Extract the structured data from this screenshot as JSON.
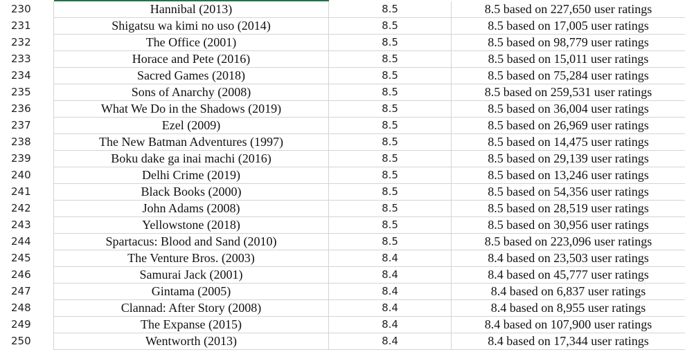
{
  "rows": [
    {
      "n": "230",
      "title": "Hannibal (2013)",
      "rating": "8.5",
      "desc": "8.5 based on 227,650 user ratings"
    },
    {
      "n": "231",
      "title": "Shigatsu wa kimi no uso (2014)",
      "rating": "8.5",
      "desc": "8.5 based on 17,005 user ratings"
    },
    {
      "n": "232",
      "title": "The Office (2001)",
      "rating": "8.5",
      "desc": "8.5 based on 98,779 user ratings"
    },
    {
      "n": "233",
      "title": "Horace and Pete (2016)",
      "rating": "8.5",
      "desc": "8.5 based on 15,011 user ratings"
    },
    {
      "n": "234",
      "title": "Sacred Games (2018)",
      "rating": "8.5",
      "desc": "8.5 based on 75,284 user ratings"
    },
    {
      "n": "235",
      "title": "Sons of Anarchy (2008)",
      "rating": "8.5",
      "desc": "8.5 based on 259,531 user ratings"
    },
    {
      "n": "236",
      "title": "What We Do in the Shadows (2019)",
      "rating": "8.5",
      "desc": "8.5 based on 36,004 user ratings"
    },
    {
      "n": "237",
      "title": "Ezel (2009)",
      "rating": "8.5",
      "desc": "8.5 based on 26,969 user ratings"
    },
    {
      "n": "238",
      "title": "The New Batman Adventures (1997)",
      "rating": "8.5",
      "desc": "8.5 based on 14,475 user ratings"
    },
    {
      "n": "239",
      "title": "Boku dake ga inai machi (2016)",
      "rating": "8.5",
      "desc": "8.5 based on 29,139 user ratings"
    },
    {
      "n": "240",
      "title": "Delhi Crime (2019)",
      "rating": "8.5",
      "desc": "8.5 based on 13,246 user ratings"
    },
    {
      "n": "241",
      "title": "Black Books (2000)",
      "rating": "8.5",
      "desc": "8.5 based on 54,356 user ratings"
    },
    {
      "n": "242",
      "title": "John Adams (2008)",
      "rating": "8.5",
      "desc": "8.5 based on 28,519 user ratings"
    },
    {
      "n": "243",
      "title": "Yellowstone (2018)",
      "rating": "8.5",
      "desc": "8.5 based on 30,956 user ratings"
    },
    {
      "n": "244",
      "title": "Spartacus: Blood and Sand (2010)",
      "rating": "8.5",
      "desc": "8.5 based on 223,096 user ratings"
    },
    {
      "n": "245",
      "title": "The Venture Bros. (2003)",
      "rating": "8.4",
      "desc": "8.4 based on 23,503 user ratings"
    },
    {
      "n": "246",
      "title": "Samurai Jack (2001)",
      "rating": "8.4",
      "desc": "8.4 based on 45,777 user ratings"
    },
    {
      "n": "247",
      "title": "Gintama (2005)",
      "rating": "8.4",
      "desc": "8.4 based on 6,837 user ratings"
    },
    {
      "n": "248",
      "title": "Clannad: After Story (2008)",
      "rating": "8.4",
      "desc": "8.4 based on 8,955 user ratings"
    },
    {
      "n": "249",
      "title": "The Expanse (2015)",
      "rating": "8.4",
      "desc": "8.4 based on 107,900 user ratings"
    },
    {
      "n": "250",
      "title": "Wentworth (2013)",
      "rating": "8.4",
      "desc": "8.4 based on 17,344 user ratings"
    }
  ],
  "colors": {
    "active_border": "#217346",
    "grid": "#d4d4d4"
  }
}
